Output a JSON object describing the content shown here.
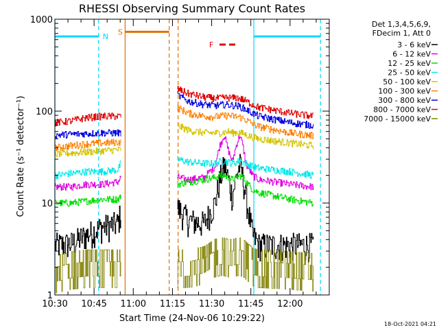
{
  "chart_data": {
    "type": "line",
    "title": "RHESSI Observing Summary Count Rates",
    "xlabel": "Start Time (24-Nov-06 10:29:22)",
    "ylabel": "Count Rate (s⁻¹ detector⁻¹)",
    "footer_date": "18-Oct-2021 04:21",
    "y_scale": "log",
    "ylim": [
      1,
      1000
    ],
    "xlim_minutes": [
      10.5,
      12.25
    ],
    "y_ticks": [
      {
        "value": 1,
        "label": "1"
      },
      {
        "value": 10,
        "label": "10"
      },
      {
        "value": 100,
        "label": "100"
      },
      {
        "value": 1000,
        "label": "1000"
      }
    ],
    "x_ticks": [
      {
        "value": 10.5,
        "label": "10:30"
      },
      {
        "value": 10.75,
        "label": "10:45"
      },
      {
        "value": 11.0,
        "label": "11:00"
      },
      {
        "value": 11.25,
        "label": "11:15"
      },
      {
        "value": 11.5,
        "label": "11:30"
      },
      {
        "value": 11.75,
        "label": "11:45"
      },
      {
        "value": 12.0,
        "label": "12:00"
      }
    ],
    "legend_header": [
      "Det 1,3,4,5,6,9,",
      "FDecim 1, Att 0"
    ],
    "legend_position": "right",
    "data_gap": [
      10.92,
      11.28
    ],
    "series": [
      {
        "name": "3 - 6 keV",
        "color": "#000000",
        "points": [
          [
            10.5,
            3.5
          ],
          [
            10.6,
            3.6
          ],
          [
            10.7,
            4.5
          ],
          [
            10.8,
            5.5
          ],
          [
            10.9,
            6.0
          ],
          [
            10.92,
            8.0
          ],
          [
            11.28,
            9.0
          ],
          [
            11.35,
            6.5
          ],
          [
            11.45,
            6.0
          ],
          [
            11.52,
            10.0
          ],
          [
            11.55,
            18.0
          ],
          [
            11.58,
            26.0
          ],
          [
            11.6,
            20.0
          ],
          [
            11.63,
            12.0
          ],
          [
            11.66,
            21.0
          ],
          [
            11.68,
            26.0
          ],
          [
            11.7,
            18.0
          ],
          [
            11.72,
            11.0
          ],
          [
            11.76,
            4.5
          ],
          [
            11.8,
            3.5
          ],
          [
            12.0,
            3.5
          ],
          [
            12.15,
            3.5
          ]
        ]
      },
      {
        "name": "6 - 12 keV",
        "color": "#e000e0",
        "points": [
          [
            10.5,
            15.0
          ],
          [
            10.6,
            15.0
          ],
          [
            10.7,
            16.0
          ],
          [
            10.8,
            16.0
          ],
          [
            10.9,
            17.0
          ],
          [
            10.92,
            19.0
          ],
          [
            11.28,
            19.0
          ],
          [
            11.35,
            18.0
          ],
          [
            11.45,
            19.0
          ],
          [
            11.52,
            25.0
          ],
          [
            11.55,
            42.0
          ],
          [
            11.58,
            55.0
          ],
          [
            11.6,
            40.0
          ],
          [
            11.63,
            28.0
          ],
          [
            11.66,
            45.0
          ],
          [
            11.68,
            55.0
          ],
          [
            11.7,
            40.0
          ],
          [
            11.72,
            26.0
          ],
          [
            11.76,
            20.0
          ],
          [
            11.8,
            18.0
          ],
          [
            12.0,
            16.0
          ],
          [
            12.15,
            15.0
          ]
        ]
      },
      {
        "name": "12 - 25 keV",
        "color": "#00e000",
        "points": [
          [
            10.5,
            10.0
          ],
          [
            10.6,
            10.0
          ],
          [
            10.7,
            10.5
          ],
          [
            10.8,
            11.0
          ],
          [
            10.9,
            11.0
          ],
          [
            10.92,
            12.0
          ],
          [
            11.28,
            16.0
          ],
          [
            11.35,
            17.0
          ],
          [
            11.45,
            18.0
          ],
          [
            11.52,
            19.0
          ],
          [
            11.55,
            20.0
          ],
          [
            11.58,
            20.0
          ],
          [
            11.6,
            19.0
          ],
          [
            11.63,
            18.0
          ],
          [
            11.66,
            19.0
          ],
          [
            11.68,
            20.0
          ],
          [
            11.7,
            19.0
          ],
          [
            11.72,
            17.0
          ],
          [
            11.76,
            14.0
          ],
          [
            11.8,
            13.0
          ],
          [
            12.0,
            11.0
          ],
          [
            12.15,
            10.0
          ]
        ]
      },
      {
        "name": "25 - 50 keV",
        "color": "#00e8e8",
        "points": [
          [
            10.5,
            20.0
          ],
          [
            10.6,
            21.0
          ],
          [
            10.7,
            22.0
          ],
          [
            10.8,
            22.0
          ],
          [
            10.9,
            23.0
          ],
          [
            10.92,
            27.0
          ],
          [
            11.28,
            30.0
          ],
          [
            11.35,
            28.0
          ],
          [
            11.45,
            27.0
          ],
          [
            11.52,
            27.0
          ],
          [
            11.55,
            28.0
          ],
          [
            11.58,
            29.0
          ],
          [
            11.6,
            28.0
          ],
          [
            11.63,
            27.0
          ],
          [
            11.66,
            28.0
          ],
          [
            11.68,
            29.0
          ],
          [
            11.7,
            28.0
          ],
          [
            11.72,
            27.0
          ],
          [
            11.76,
            25.0
          ],
          [
            11.8,
            24.0
          ],
          [
            12.0,
            22.0
          ],
          [
            12.15,
            20.0
          ]
        ]
      },
      {
        "name": "50 - 100 keV",
        "color": "#d4c400",
        "points": [
          [
            10.5,
            34.0
          ],
          [
            10.6,
            35.0
          ],
          [
            10.7,
            36.0
          ],
          [
            10.8,
            37.0
          ],
          [
            10.9,
            38.0
          ],
          [
            10.92,
            38.0
          ],
          [
            11.28,
            70.0
          ],
          [
            11.35,
            62.0
          ],
          [
            11.45,
            58.0
          ],
          [
            11.52,
            58.0
          ],
          [
            11.55,
            58.0
          ],
          [
            11.58,
            59.0
          ],
          [
            11.6,
            60.0
          ],
          [
            11.63,
            58.0
          ],
          [
            11.66,
            59.0
          ],
          [
            11.68,
            58.0
          ],
          [
            11.7,
            57.0
          ],
          [
            11.72,
            55.0
          ],
          [
            11.76,
            52.0
          ],
          [
            11.8,
            50.0
          ],
          [
            12.0,
            45.0
          ],
          [
            12.15,
            42.0
          ]
        ]
      },
      {
        "name": "100 - 300 keV",
        "color": "#ff8000",
        "points": [
          [
            10.5,
            40.0
          ],
          [
            10.6,
            42.0
          ],
          [
            10.7,
            44.0
          ],
          [
            10.8,
            45.0
          ],
          [
            10.9,
            46.0
          ],
          [
            10.92,
            46.0
          ],
          [
            11.28,
            110.0
          ],
          [
            11.35,
            95.0
          ],
          [
            11.45,
            88.0
          ],
          [
            11.52,
            87.0
          ],
          [
            11.55,
            88.0
          ],
          [
            11.58,
            89.0
          ],
          [
            11.6,
            90.0
          ],
          [
            11.63,
            88.0
          ],
          [
            11.66,
            87.0
          ],
          [
            11.68,
            86.0
          ],
          [
            11.7,
            83.0
          ],
          [
            11.72,
            80.0
          ],
          [
            11.76,
            73.0
          ],
          [
            11.8,
            68.0
          ],
          [
            12.0,
            58.0
          ],
          [
            12.15,
            54.0
          ]
        ]
      },
      {
        "name": "300 - 800 keV",
        "color": "#0000e0",
        "points": [
          [
            10.5,
            55.0
          ],
          [
            10.6,
            56.0
          ],
          [
            10.7,
            57.0
          ],
          [
            10.8,
            58.0
          ],
          [
            10.9,
            58.0
          ],
          [
            10.92,
            58.0
          ],
          [
            11.28,
            150.0
          ],
          [
            11.35,
            128.0
          ],
          [
            11.45,
            118.0
          ],
          [
            11.52,
            115.0
          ],
          [
            11.55,
            116.0
          ],
          [
            11.58,
            118.0
          ],
          [
            11.6,
            117.0
          ],
          [
            11.63,
            116.0
          ],
          [
            11.66,
            115.0
          ],
          [
            11.68,
            112.0
          ],
          [
            11.7,
            108.0
          ],
          [
            11.72,
            104.0
          ],
          [
            11.76,
            95.0
          ],
          [
            11.8,
            88.0
          ],
          [
            12.0,
            75.0
          ],
          [
            12.15,
            70.0
          ]
        ]
      },
      {
        "name": "800 - 7000 keV",
        "color": "#e00000",
        "points": [
          [
            10.5,
            75.0
          ],
          [
            10.6,
            78.0
          ],
          [
            10.7,
            85.0
          ],
          [
            10.8,
            88.0
          ],
          [
            10.9,
            88.0
          ],
          [
            10.92,
            88.0
          ],
          [
            11.28,
            175.0
          ],
          [
            11.35,
            155.0
          ],
          [
            11.45,
            142.0
          ],
          [
            11.52,
            138.0
          ],
          [
            11.55,
            138.0
          ],
          [
            11.58,
            140.0
          ],
          [
            11.6,
            140.0
          ],
          [
            11.63,
            139.0
          ],
          [
            11.66,
            140.0
          ],
          [
            11.68,
            137.0
          ],
          [
            11.7,
            133.0
          ],
          [
            11.72,
            128.0
          ],
          [
            11.76,
            118.0
          ],
          [
            11.8,
            110.0
          ],
          [
            12.0,
            95.0
          ],
          [
            12.15,
            88.0
          ]
        ]
      },
      {
        "name": "7000 - 15000 keV",
        "color": "#808000",
        "points": [
          [
            10.5,
            2.0
          ],
          [
            10.6,
            2.2
          ],
          [
            10.7,
            2.3
          ],
          [
            10.8,
            2.3
          ],
          [
            10.9,
            2.3
          ],
          [
            10.92,
            2.3
          ],
          [
            11.28,
            2.3
          ],
          [
            11.35,
            2.3
          ],
          [
            11.45,
            2.5
          ],
          [
            11.52,
            3.0
          ],
          [
            11.55,
            3.1
          ],
          [
            11.58,
            3.1
          ],
          [
            11.6,
            3.0
          ],
          [
            11.63,
            3.0
          ],
          [
            11.66,
            3.1
          ],
          [
            11.68,
            3.1
          ],
          [
            11.7,
            3.0
          ],
          [
            11.72,
            2.8
          ],
          [
            11.76,
            2.4
          ],
          [
            11.8,
            2.3
          ],
          [
            12.0,
            2.2
          ],
          [
            12.15,
            2.1
          ]
        ]
      }
    ],
    "annotations": {
      "lines": [
        {
          "kind": "night",
          "color": "#00d8ff",
          "style": "solid",
          "x": 10.5
        },
        {
          "kind": "night",
          "color": "#00d8ff",
          "style": "dashed",
          "x": 10.779
        },
        {
          "kind": "night",
          "color": "#00d8ff",
          "style": "solid",
          "x": 11.769
        },
        {
          "kind": "night",
          "color": "#00d8ff",
          "style": "dashed",
          "x": 12.194
        },
        {
          "kind": "saa",
          "color": "#e07000",
          "style": "solid",
          "x": 10.948
        },
        {
          "kind": "saa",
          "color": "#e07000",
          "style": "dashed",
          "x": 11.229
        },
        {
          "kind": "saa",
          "color": "#e07000",
          "style": "dashed",
          "x": 11.286
        }
      ],
      "bars": [
        {
          "label": "N",
          "color": "#00d8ff",
          "x0": 10.5,
          "x1": 10.779,
          "y": 650,
          "style": "solid"
        },
        {
          "label": "",
          "color": "#00d8ff",
          "x0": 11.769,
          "x1": 12.194,
          "y": 650,
          "style": "solid"
        },
        {
          "label": "S",
          "color": "#e07000",
          "x0": 10.948,
          "x1": 11.229,
          "y": 730,
          "style": "solid"
        },
        {
          "label": "F",
          "color": "#e00000",
          "x0": 11.55,
          "x1": 11.666,
          "y": 530,
          "style": "dashed"
        }
      ]
    }
  }
}
